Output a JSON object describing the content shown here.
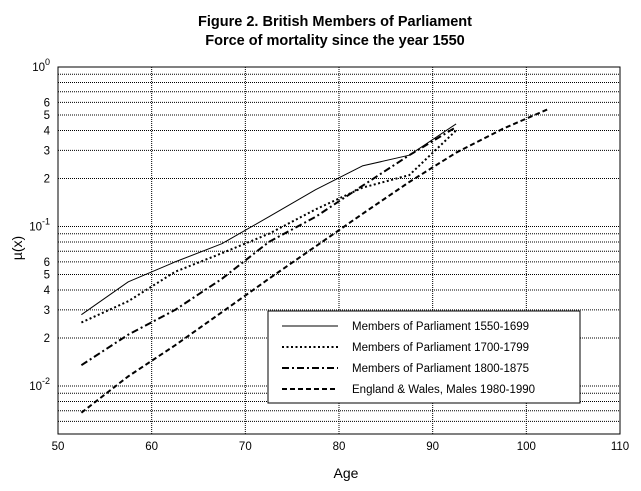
{
  "chart_data": {
    "type": "line",
    "title": "Figure 2. British Members of Parliament",
    "subtitle": "Force of mortality since the year 1550",
    "xlabel": "Age",
    "ylabel": "µ(x)",
    "xlim": [
      50,
      110
    ],
    "ylim": [
      0.005,
      1
    ],
    "y_scale": "log",
    "grid": true,
    "legend_position": "bottom-right",
    "x_ticks": [
      {
        "value": 50,
        "label": "50"
      },
      {
        "value": 60,
        "label": "60"
      },
      {
        "value": 70,
        "label": "70"
      },
      {
        "value": 80,
        "label": "80"
      },
      {
        "value": 90,
        "label": "90"
      },
      {
        "value": 100,
        "label": "100"
      },
      {
        "value": 110,
        "label": "110"
      }
    ],
    "y_major_ticks": [
      {
        "value": 1,
        "base": "10",
        "exp": "0"
      },
      {
        "value": 0.1,
        "base": "10",
        "exp": "-1"
      },
      {
        "value": 0.01,
        "base": "10",
        "exp": "-2"
      }
    ],
    "y_minor_labels": [
      {
        "value": 0.6,
        "label": "6"
      },
      {
        "value": 0.5,
        "label": "5"
      },
      {
        "value": 0.4,
        "label": "4"
      },
      {
        "value": 0.3,
        "label": "3"
      },
      {
        "value": 0.2,
        "label": "2"
      },
      {
        "value": 0.06,
        "label": "6"
      },
      {
        "value": 0.05,
        "label": "5"
      },
      {
        "value": 0.04,
        "label": "4"
      },
      {
        "value": 0.03,
        "label": "3"
      },
      {
        "value": 0.02,
        "label": "2"
      }
    ],
    "series": [
      {
        "name": "Members of Parliament 1550-1699",
        "style": "solid",
        "x": [
          52.5,
          57.5,
          62.5,
          67.5,
          72.5,
          77.5,
          82.5,
          87.5,
          92.5
        ],
        "y": [
          0.028,
          0.045,
          0.06,
          0.078,
          0.115,
          0.17,
          0.24,
          0.28,
          0.44
        ]
      },
      {
        "name": "Members of Parliament 1700-1799",
        "style": "dotted",
        "x": [
          52.5,
          57.5,
          62.5,
          67.5,
          72.5,
          77.5,
          82.5,
          87.5,
          92.5
        ],
        "y": [
          0.025,
          0.034,
          0.052,
          0.068,
          0.09,
          0.128,
          0.175,
          0.21,
          0.4
        ]
      },
      {
        "name": "Members of Parliament 1800-1875",
        "style": "dashdot",
        "x": [
          52.5,
          57.5,
          62.5,
          67.5,
          72.5,
          77.5,
          82.5,
          87.5,
          92.5
        ],
        "y": [
          0.0135,
          0.021,
          0.03,
          0.047,
          0.08,
          0.115,
          0.18,
          0.28,
          0.42
        ]
      },
      {
        "name": "England & Wales, Males 1980-1990",
        "style": "dashed",
        "x": [
          52.5,
          57.5,
          62.5,
          67.5,
          72.5,
          77.5,
          82.5,
          87.5,
          92.5,
          97.5,
          102.5
        ],
        "y": [
          0.0068,
          0.0115,
          0.018,
          0.029,
          0.047,
          0.075,
          0.12,
          0.19,
          0.29,
          0.41,
          0.55
        ]
      }
    ]
  }
}
